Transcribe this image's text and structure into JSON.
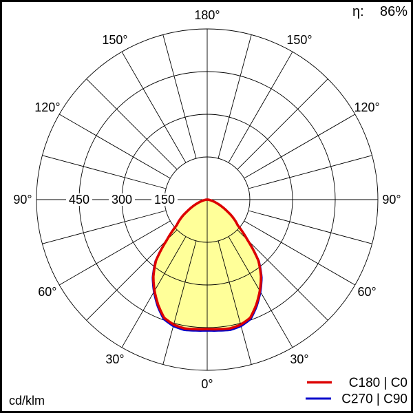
{
  "header": {
    "eta_label": "η:",
    "eta_value": "86%"
  },
  "footer": {
    "unit_label": "cd/klm"
  },
  "legend": {
    "entries": [
      {
        "label": "C180 | C0",
        "color": "#dd0000"
      },
      {
        "label": "C270 | C90",
        "color": "#0000cc"
      }
    ]
  },
  "chart_data": {
    "type": "polar",
    "subtype": "luminous-intensity-distribution",
    "unit": "cd/klm",
    "efficiency": "86%",
    "r_axis_max": 600,
    "rings": [
      150,
      300,
      450,
      600
    ],
    "ring_labels": [
      "150",
      "300",
      "450"
    ],
    "spoke_step_deg": 15,
    "gamma_start_deg": 0,
    "gamma_step_deg": 5,
    "gamma_end_deg": 90,
    "symmetric_about_vertical": true,
    "fill_color": "#ffff99",
    "series": [
      {
        "name": "C180 | C0",
        "color": "#dd0000",
        "values": [
          455,
          457,
          460,
          455,
          442,
          408,
          370,
          330,
          280,
          200,
          140,
          112,
          80,
          55,
          35,
          20,
          10,
          4,
          0
        ]
      },
      {
        "name": "C270 | C90",
        "color": "#0000cc",
        "values": [
          455,
          457,
          460,
          455,
          442,
          408,
          370,
          330,
          280,
          200,
          140,
          112,
          80,
          55,
          35,
          20,
          10,
          4,
          0
        ]
      }
    ],
    "angle_labels": [
      {
        "text": "0°",
        "deg": 0
      },
      {
        "text": "30°",
        "deg": 30
      },
      {
        "text": "30°",
        "deg": -30
      },
      {
        "text": "60°",
        "deg": 60
      },
      {
        "text": "60°",
        "deg": -60
      },
      {
        "text": "90°",
        "deg": 90
      },
      {
        "text": "90°",
        "deg": -90
      },
      {
        "text": "120°",
        "deg": 120
      },
      {
        "text": "120°",
        "deg": -120
      },
      {
        "text": "150°",
        "deg": 150
      },
      {
        "text": "150°",
        "deg": -150
      },
      {
        "text": "180°",
        "deg": 180
      }
    ]
  }
}
